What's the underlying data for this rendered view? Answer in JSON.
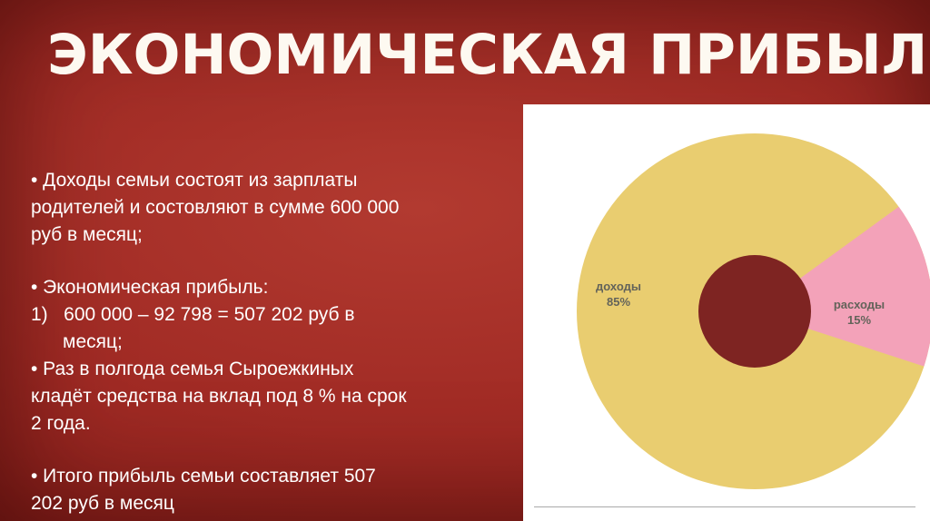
{
  "slide": {
    "title": "Экономическая прибыль",
    "bullets": {
      "p1": "• Доходы семьи состоят из зарплаты\nродителей и состовляют в сумме 600 000\nруб в месяц;",
      "p2": "• Экономическая прибыль:",
      "p3": "1)   600 000 – 92 798 = 507 202 руб в\n      месяц;",
      "p4": "• Раз в полгода семья Сыроежкиных\nкладёт средства на вклад под 8 % на срок\n2 года.",
      "p5": "• Итого прибыль семьи составляет 507\n202 руб в месяц"
    }
  },
  "theme": {
    "background": "#9c2722",
    "panel": "#ffffff",
    "text": "#ffffff",
    "chart_label_text": "#63635a"
  },
  "chart_data": {
    "type": "pie",
    "donut": true,
    "title": "",
    "categories": [
      "доходы",
      "расходы"
    ],
    "values": [
      85,
      15
    ],
    "value_labels": [
      "85%",
      "15%"
    ],
    "unit": "%",
    "colors": [
      "#e9cd70",
      "#f3a2b9"
    ],
    "hole_color": "#7e2422",
    "legend_position": "none"
  }
}
